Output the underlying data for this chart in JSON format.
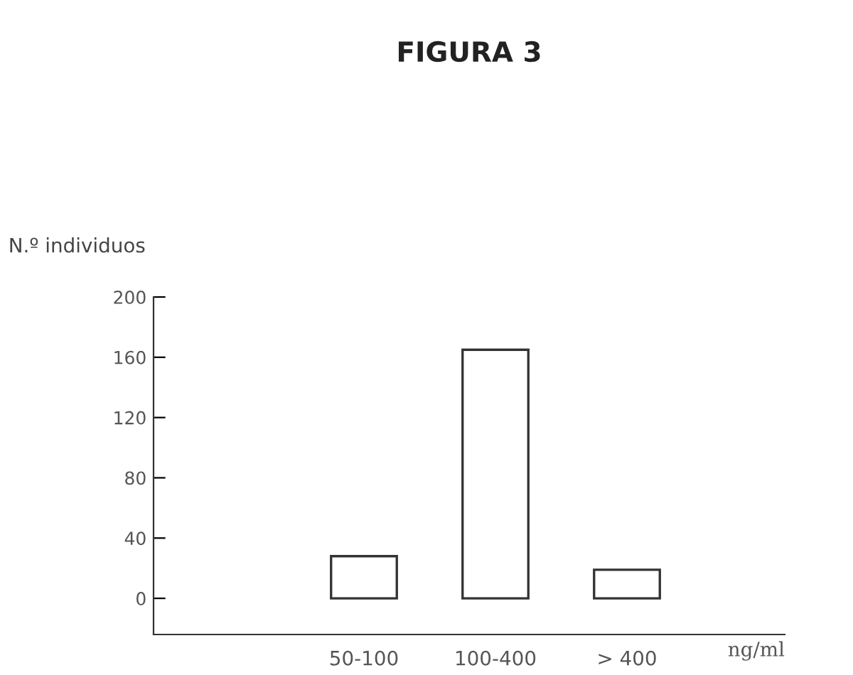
{
  "chart_data": {
    "type": "bar",
    "title": "FIGURA 3",
    "ylabel": "N.º individuos",
    "xlabel": "ng/ml",
    "categories": [
      "50-100",
      "100-400",
      "> 400"
    ],
    "values": [
      28,
      165,
      19
    ],
    "color": "#ffffff",
    "ylim": [
      -24,
      200
    ],
    "yticks": [
      0,
      40,
      80,
      120,
      160,
      200
    ],
    "grid": false,
    "legend": false
  }
}
